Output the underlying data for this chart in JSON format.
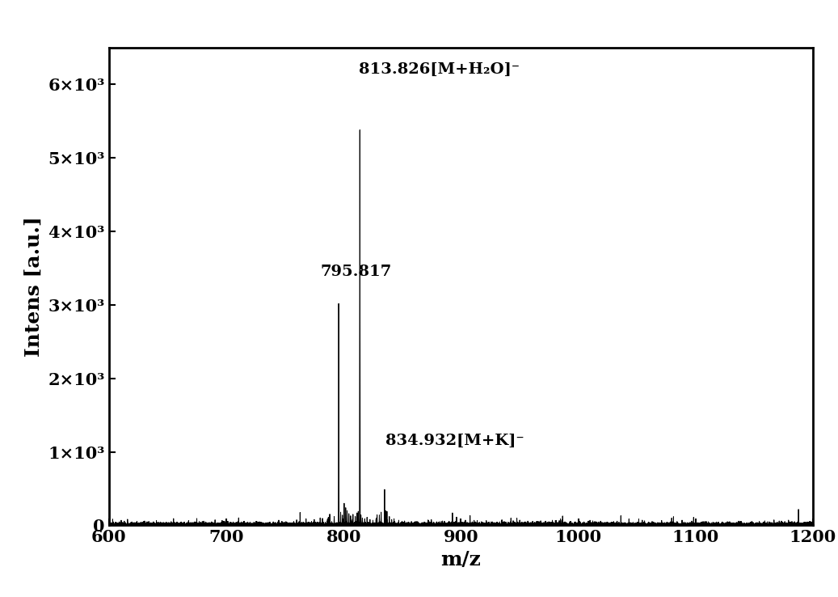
{
  "xlim": [
    600,
    1200
  ],
  "ylim": [
    0,
    6500
  ],
  "xlabel": "m/z",
  "ylabel": "Intens [a.u.]",
  "yticks": [
    0,
    1000,
    2000,
    3000,
    4000,
    5000,
    6000
  ],
  "ytick_labels": [
    "0",
    "1×10³",
    "2×10³",
    "3×10³",
    "4×10³",
    "5×10³",
    "6×10³"
  ],
  "xticks": [
    600,
    700,
    800,
    900,
    1000,
    1100,
    1200
  ],
  "background_color": "#ffffff",
  "spine_color": "#000000",
  "major_peaks": [
    {
      "mz": 813.826,
      "intensity": 5850,
      "label": "813.826[M+H₂O]⁻",
      "label_mz": 813.0,
      "label_intens": 6100
    },
    {
      "mz": 795.817,
      "intensity": 3200,
      "label": "795.817",
      "label_mz": 780.0,
      "label_intens": 3350
    },
    {
      "mz": 834.932,
      "intensity": 520,
      "label": "834.932[M+K]⁻",
      "label_mz": 836.0,
      "label_intens": 1050
    }
  ],
  "noise_seed": 42,
  "line_color": "#000000",
  "label_fontsize": 14,
  "axis_label_fontsize": 18,
  "tick_fontsize": 15
}
